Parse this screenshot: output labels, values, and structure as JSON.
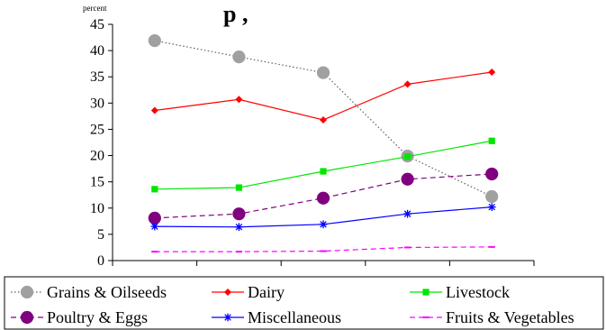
{
  "title_fragment": "p  ,",
  "chart_data": {
    "type": "line",
    "title": "",
    "xlabel": "",
    "ylabel": "percent",
    "categories": [
      "",
      "",
      "",
      "",
      ""
    ],
    "ylim": [
      0,
      45
    ],
    "yticks": [
      0,
      5,
      10,
      15,
      20,
      25,
      30,
      35,
      40,
      45
    ],
    "grid": false,
    "legend_position": "bottom",
    "series": [
      {
        "name": "Grains & Oilseeds",
        "values": [
          41.9,
          38.8,
          35.8,
          19.9,
          12.2
        ],
        "color": "#a0a0a0",
        "marker": "circle",
        "line": "dotted"
      },
      {
        "name": "Dairy",
        "values": [
          28.6,
          30.7,
          26.8,
          33.6,
          35.9
        ],
        "color": "#ff0000",
        "marker": "diamond",
        "line": "solid"
      },
      {
        "name": "Livestock",
        "values": [
          13.6,
          13.9,
          17.0,
          19.8,
          22.8
        ],
        "color": "#00e600",
        "marker": "square",
        "line": "solid"
      },
      {
        "name": "Poultry & Eggs",
        "values": [
          8.1,
          8.9,
          11.9,
          15.5,
          16.5
        ],
        "color": "#800080",
        "marker": "circle",
        "line": "dashed"
      },
      {
        "name": "Miscellaneous",
        "values": [
          6.5,
          6.4,
          6.9,
          8.9,
          10.2
        ],
        "color": "#0000ff",
        "marker": "asterisk",
        "line": "solid"
      },
      {
        "name": "Fruits & Vegetables",
        "values": [
          1.7,
          1.7,
          1.8,
          2.5,
          2.6
        ],
        "color": "#ff00ff",
        "marker": "dash",
        "line": "dashed"
      }
    ]
  }
}
